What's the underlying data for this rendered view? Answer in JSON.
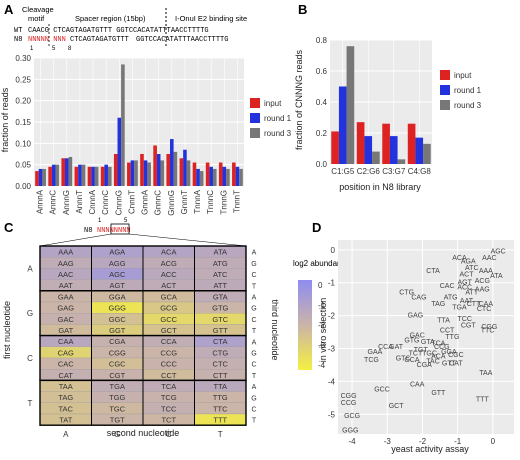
{
  "panels": {
    "A": {
      "letter": "A",
      "seq_header": {
        "cleavage": "Cleavage",
        "motif": "motif",
        "spacer": "Spacer region (15bp)",
        "binding": "I-OnuI E2 binding site",
        "wt_label": "WT",
        "wt_seq": "CAACG CTCAGTAGATGTTT GGTCCACATATTTAACCTTTTG",
        "n8_label": "N8",
        "n8_red1": "NNNNN",
        "n8_red2": "NNN",
        "n8_rest1": "CTCAGTAGATGTTT",
        "n8_rest2": "GGTCCACATATTTAACCTTTTG",
        "pos": [
          "1",
          "5",
          "8"
        ]
      },
      "chart_data": {
        "type": "bar",
        "ylabel": "fraction of reads",
        "ylim": [
          0,
          0.3
        ],
        "yticks": [
          "0.00",
          "0.05",
          "0.10",
          "0.15",
          "0.20",
          "0.25",
          "0.30"
        ],
        "categories": [
          "AnnnA",
          "AnnnC",
          "AnnnG",
          "AnnnT",
          "CnnnA",
          "CnnnC",
          "CnnnG",
          "CnnnT",
          "GnnnA",
          "GnnnC",
          "GnnnG",
          "GnnnT",
          "TnnnA",
          "TnnnC",
          "TnnnG",
          "TnnnT"
        ],
        "series": [
          {
            "name": "input",
            "color": "#dd2222",
            "values": [
              0.035,
              0.045,
              0.065,
              0.045,
              0.045,
              0.045,
              0.075,
              0.055,
              0.075,
              0.095,
              0.075,
              0.065,
              0.055,
              0.055,
              0.055,
              0.055
            ]
          },
          {
            "name": "round 1",
            "color": "#2233dd",
            "values": [
              0.04,
              0.05,
              0.065,
              0.05,
              0.045,
              0.05,
              0.16,
              0.06,
              0.06,
              0.075,
              0.11,
              0.085,
              0.04,
              0.045,
              0.045,
              0.045
            ]
          },
          {
            "name": "round 3",
            "color": "#777777",
            "values": [
              0.04,
              0.05,
              0.068,
              0.05,
              0.045,
              0.045,
              0.285,
              0.06,
              0.055,
              0.06,
              0.08,
              0.06,
              0.035,
              0.04,
              0.04,
              0.04
            ]
          }
        ]
      }
    },
    "B": {
      "letter": "B",
      "chart_data": {
        "type": "bar",
        "ylabel": "fraction of CNNNG reads",
        "xlabel": "position in N8 library",
        "ylim": [
          0,
          0.8
        ],
        "yticks": [
          "0.0",
          "0.2",
          "0.4",
          "0.6",
          "0.8"
        ],
        "categories": [
          "C1:G5",
          "C2:G6",
          "C3:G7",
          "C4:G8"
        ],
        "series": [
          {
            "name": "input",
            "color": "#dd2222",
            "values": [
              0.21,
              0.27,
              0.26,
              0.26
            ]
          },
          {
            "name": "round 1",
            "color": "#2233dd",
            "values": [
              0.5,
              0.18,
              0.18,
              0.17
            ]
          },
          {
            "name": "round 3",
            "color": "#777777",
            "values": [
              0.76,
              0.08,
              0.03,
              0.13
            ]
          }
        ]
      }
    },
    "C": {
      "letter": "C",
      "n8_label": "N8",
      "n8_seq": "NNNNNNNN",
      "markers": [
        "1",
        "5"
      ],
      "ylabel": "first nucleotide",
      "xlabel": "second nucleotide",
      "right_label": "third nucleotide",
      "first": [
        "A",
        "G",
        "C",
        "T"
      ],
      "second": [
        "A",
        "G",
        "C",
        "T"
      ],
      "third": [
        "A",
        "G",
        "C",
        "T"
      ],
      "legend_title": "log2 abundance",
      "legend_ticks": [
        "0",
        "-1",
        "-2",
        "-3",
        "-4"
      ],
      "grid": [
        [
          [
            "AAA",
            "AAG",
            "AAC",
            "AAT"
          ],
          [
            "AGA",
            "AGG",
            "AGC",
            "AGT"
          ],
          [
            "ACA",
            "ACG",
            "ACC",
            "ACT"
          ],
          [
            "ATA",
            "ATG",
            "ATC",
            "ATT"
          ]
        ],
        [
          [
            "GAA",
            "GAG",
            "GAC",
            "GAT"
          ],
          [
            "GGA",
            "GGG",
            "GGC",
            "GGT"
          ],
          [
            "GCA",
            "GCG",
            "GCC",
            "GCT"
          ],
          [
            "GTA",
            "GTG",
            "GTC",
            "GTT"
          ]
        ],
        [
          [
            "CAA",
            "CAG",
            "CAC",
            "CAT"
          ],
          [
            "CGA",
            "CGG",
            "CGC",
            "CGT"
          ],
          [
            "CCA",
            "CCG",
            "CCC",
            "CCT"
          ],
          [
            "CTA",
            "CTG",
            "CTC",
            "CTT"
          ]
        ],
        [
          [
            "TAA",
            "TAG",
            "TAC",
            "TAT"
          ],
          [
            "TGA",
            "TGG",
            "TGC",
            "TGT"
          ],
          [
            "TCA",
            "TCG",
            "TCC",
            "TCT"
          ],
          [
            "TTA",
            "TTG",
            "TTC",
            "TTT"
          ]
        ]
      ],
      "values": [
        [
          [
            -1,
            -1.5,
            -1.2,
            -1.6
          ],
          [
            -0.8,
            -1.2,
            -0.5,
            -1.4
          ],
          [
            -1.0,
            -1.5,
            -1.3,
            -1.5
          ],
          [
            -1.2,
            -1.5,
            -1.5,
            -1.4
          ]
        ],
        [
          [
            -2.0,
            -2.0,
            -1.8,
            -2.3
          ],
          [
            -2.2,
            -4.0,
            -2.5,
            -3.0
          ],
          [
            -2.3,
            -2.8,
            -3.5,
            -2.6
          ],
          [
            -1.5,
            -2.0,
            -3.5,
            -2.6
          ]
        ],
        [
          [
            -1.2,
            -3.3,
            -2.0,
            -1.7
          ],
          [
            -1.8,
            -2.0,
            -2.4,
            -1.9
          ],
          [
            -1.6,
            -2.0,
            -1.9,
            -2.3
          ],
          [
            -0.8,
            -1.5,
            -1.7,
            -1.8
          ]
        ],
        [
          [
            -2.5,
            -2.4,
            -2.5,
            -2.5
          ],
          [
            -1.6,
            -1.8,
            -2.2,
            -2.0
          ],
          [
            -1.5,
            -1.9,
            -1.7,
            -2.1
          ],
          [
            -1.3,
            -2.0,
            -2.0,
            -4.0
          ]
        ]
      ]
    },
    "D": {
      "letter": "D",
      "chart_data": {
        "type": "scatter",
        "xlabel": "yeast activity assay",
        "ylabel": "in vitro selection",
        "xlim": [
          -4.4,
          0.6
        ],
        "ylim": [
          -5.6,
          0.3
        ],
        "xticks": [
          -4,
          -3,
          -2,
          -1,
          0
        ],
        "yticks": [
          0,
          -1,
          -2,
          -3,
          -4,
          -5
        ],
        "points": [
          {
            "t": "AGC",
            "x": 0.15,
            "y": -0.05
          },
          {
            "t": "AAC",
            "x": -0.1,
            "y": -0.25
          },
          {
            "t": "ACA",
            "x": -0.95,
            "y": -0.25
          },
          {
            "t": "AGA",
            "x": -0.7,
            "y": -0.35
          },
          {
            "t": "ATC",
            "x": -0.6,
            "y": -0.55
          },
          {
            "t": "ATA",
            "x": 0.1,
            "y": -0.8
          },
          {
            "t": "AAA",
            "x": -0.2,
            "y": -0.65
          },
          {
            "t": "ACG",
            "x": -0.3,
            "y": -0.95
          },
          {
            "t": "CTA",
            "x": -1.7,
            "y": -0.65
          },
          {
            "t": "ACT",
            "x": -0.75,
            "y": -0.75
          },
          {
            "t": "CAC",
            "x": -1.3,
            "y": -1.1
          },
          {
            "t": "AAG",
            "x": -0.3,
            "y": -1.2
          },
          {
            "t": "CTG",
            "x": -2.45,
            "y": -1.3
          },
          {
            "t": "AGT",
            "x": -0.8,
            "y": -1.0
          },
          {
            "t": "ATT",
            "x": -0.6,
            "y": -1.3
          },
          {
            "t": "ACC",
            "x": -0.8,
            "y": -1.15
          },
          {
            "t": "CAG",
            "x": -2.1,
            "y": -1.45
          },
          {
            "t": "ATG",
            "x": -1.2,
            "y": -1.45
          },
          {
            "t": "AAT",
            "x": -0.75,
            "y": -1.55
          },
          {
            "t": "CTT",
            "x": -0.55,
            "y": -1.65
          },
          {
            "t": "TAG",
            "x": -1.55,
            "y": -1.65
          },
          {
            "t": "TGA",
            "x": -0.95,
            "y": -1.75
          },
          {
            "t": "CAA",
            "x": -0.2,
            "y": -1.65
          },
          {
            "t": "CTC",
            "x": -0.25,
            "y": -1.8
          },
          {
            "t": "GAG",
            "x": -2.2,
            "y": -2.0
          },
          {
            "t": "TCC",
            "x": -0.8,
            "y": -2.1
          },
          {
            "t": "TTA",
            "x": -1.4,
            "y": -2.15
          },
          {
            "t": "CGT",
            "x": -0.7,
            "y": -2.3
          },
          {
            "t": "CCT",
            "x": -1.3,
            "y": -2.45
          },
          {
            "t": "CGG",
            "x": -0.1,
            "y": -2.35
          },
          {
            "t": "TTC",
            "x": -0.15,
            "y": -2.45
          },
          {
            "t": "GAC",
            "x": -2.15,
            "y": -2.6
          },
          {
            "t": "GTG",
            "x": -2.3,
            "y": -2.75
          },
          {
            "t": "TTG",
            "x": -1.15,
            "y": -2.65
          },
          {
            "t": "GTA",
            "x": -1.85,
            "y": -2.8
          },
          {
            "t": "CCA",
            "x": -3.05,
            "y": -2.95
          },
          {
            "t": "GAT",
            "x": -2.75,
            "y": -2.95
          },
          {
            "t": "TCA",
            "x": -1.55,
            "y": -2.85
          },
          {
            "t": "CCG",
            "x": -1.45,
            "y": -2.95
          },
          {
            "t": "GAA",
            "x": -3.35,
            "y": -3.1
          },
          {
            "t": "GGA",
            "x": -1.25,
            "y": -3.1
          },
          {
            "t": "TCT",
            "x": -2.2,
            "y": -3.15
          },
          {
            "t": "CGC",
            "x": -1.05,
            "y": -3.2
          },
          {
            "t": "TGT",
            "x": -2.05,
            "y": -3.05
          },
          {
            "t": "ACA2",
            "x": -1.55,
            "y": -3.25
          },
          {
            "t": "TCG",
            "x": -3.45,
            "y": -3.35
          },
          {
            "t": "GCA",
            "x": -2.3,
            "y": -3.35
          },
          {
            "t": "CGA",
            "x": -1.95,
            "y": -3.5
          },
          {
            "t": "TAC",
            "x": -1.7,
            "y": -3.4
          },
          {
            "t": "GTT",
            "x": -1.25,
            "y": -3.45
          },
          {
            "t": "TGC",
            "x": -1.8,
            "y": -3.15
          },
          {
            "t": "CAT",
            "x": -1.05,
            "y": -3.45
          },
          {
            "t": "TAA",
            "x": -0.2,
            "y": -3.75
          },
          {
            "t": "GTC",
            "x": -2.55,
            "y": -3.3
          },
          {
            "t": "CAA2",
            "x": -2.15,
            "y": -4.1
          },
          {
            "t": "GCC",
            "x": -3.15,
            "y": -4.25
          },
          {
            "t": "GTT2",
            "x": -1.55,
            "y": -4.35
          },
          {
            "t": "TTT",
            "x": -0.3,
            "y": -4.55
          },
          {
            "t": "GCT",
            "x": -2.75,
            "y": -4.75
          },
          {
            "t": "CGG2",
            "x": -4.1,
            "y": -4.45
          },
          {
            "t": "CCG2",
            "x": -4.1,
            "y": -4.65
          },
          {
            "t": "GCG",
            "x": -4.0,
            "y": -5.05
          },
          {
            "t": "GGG",
            "x": -4.05,
            "y": -5.5
          }
        ]
      }
    }
  }
}
